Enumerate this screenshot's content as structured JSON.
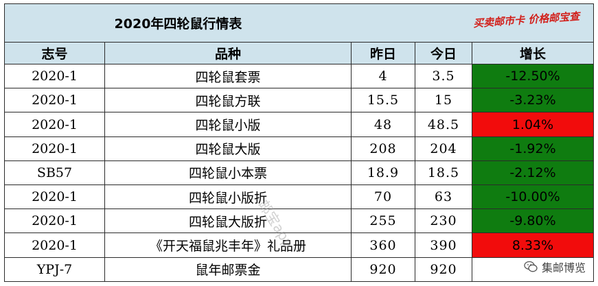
{
  "title": "2020年四轮鼠行情表",
  "stamp_text": "买卖邮市卡 价格邮宝查",
  "watermark_text": "邮宝app",
  "brand_text": "集邮博览",
  "headers": [
    "志号",
    "品种",
    "昨日",
    "今日",
    "增长"
  ],
  "rows": [
    {
      "code": "2020-1",
      "item": "四轮鼠套票",
      "yesterday": "4",
      "today": "3.5",
      "change": "-12.50%",
      "trend": "down"
    },
    {
      "code": "2020-1",
      "item": "四轮鼠方联",
      "yesterday": "15.5",
      "today": "15",
      "change": "-3.23%",
      "trend": "down"
    },
    {
      "code": "2020-1",
      "item": "四轮鼠小版",
      "yesterday": "48",
      "today": "48.5",
      "change": "1.04%",
      "trend": "up"
    },
    {
      "code": "2020-1",
      "item": "四轮鼠大版",
      "yesterday": "208",
      "today": "204",
      "change": "-1.92%",
      "trend": "down"
    },
    {
      "code": "SB57",
      "item": "四轮鼠小本票",
      "yesterday": "18.9",
      "today": "18.5",
      "change": "-2.12%",
      "trend": "down"
    },
    {
      "code": "2020-1",
      "item": "四轮鼠小版折",
      "yesterday": "70",
      "today": "63",
      "change": "-10.00%",
      "trend": "down"
    },
    {
      "code": "2020-1",
      "item": "四轮鼠大版折",
      "yesterday": "255",
      "today": "230",
      "change": "-9.80%",
      "trend": "down"
    },
    {
      "code": "2020-1",
      "item": "《开天福鼠兆丰年》礼品册",
      "yesterday": "360",
      "today": "390",
      "change": "8.33%",
      "trend": "up"
    },
    {
      "code": "YPJ-7",
      "item": "鼠年邮票金",
      "yesterday": "920",
      "today": "920",
      "change": "",
      "trend": "none"
    }
  ],
  "colors": {
    "header_bg": "#cfe3ec",
    "down": "#0f7c10",
    "up": "#f20c0c"
  }
}
